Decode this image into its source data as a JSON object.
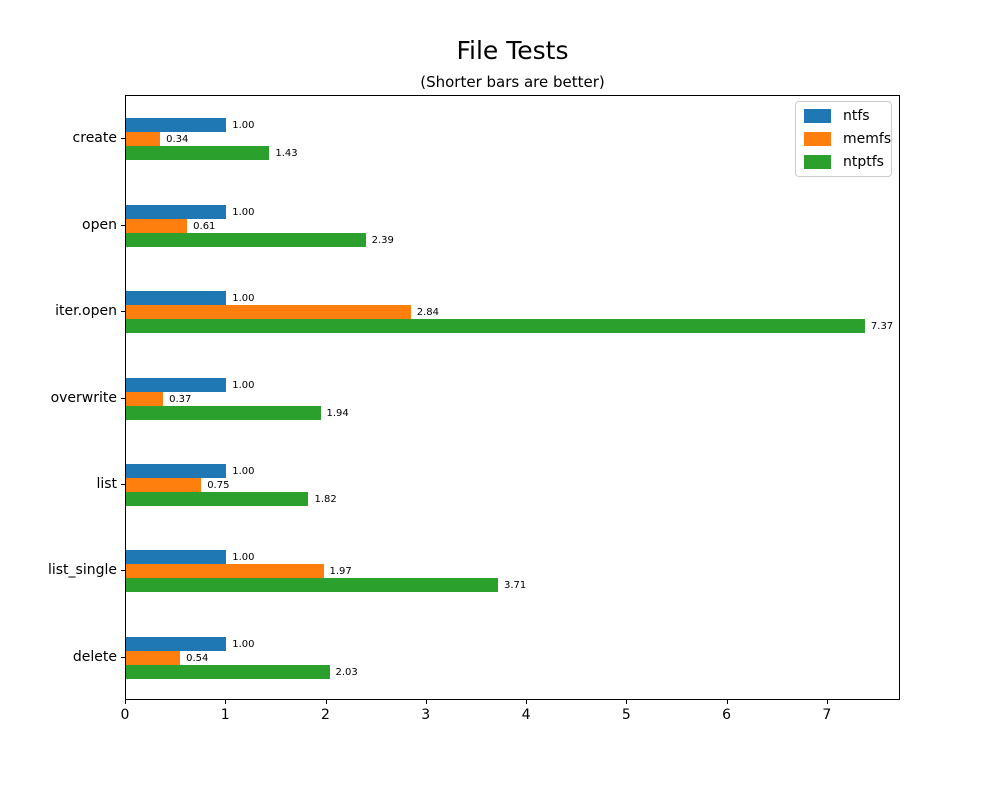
{
  "chart_data": {
    "type": "bar",
    "orientation": "horizontal",
    "title": "File Tests",
    "subtitle": "(Shorter bars are better)",
    "xlabel": "",
    "ylabel": "",
    "categories": [
      "create",
      "open",
      "iter.open",
      "overwrite",
      "list",
      "list_single",
      "delete"
    ],
    "series": [
      {
        "name": "ntfs",
        "color": "#1f77b4",
        "values": [
          1.0,
          1.0,
          1.0,
          1.0,
          1.0,
          1.0,
          1.0
        ]
      },
      {
        "name": "memfs",
        "color": "#ff7f0e",
        "values": [
          0.34,
          0.61,
          2.84,
          0.37,
          0.75,
          1.97,
          0.54
        ]
      },
      {
        "name": "ntptfs",
        "color": "#2ca02c",
        "values": [
          1.43,
          2.39,
          7.37,
          1.94,
          1.82,
          3.71,
          2.03
        ]
      }
    ],
    "bar_value_labels": true,
    "value_label_format": "0.00",
    "xlim": [
      0,
      7.73
    ],
    "xticks": [
      0,
      1,
      2,
      3,
      4,
      5,
      6,
      7
    ],
    "grid": false,
    "legend_position": "upper right",
    "legend_entries": [
      "ntfs",
      "memfs",
      "ntptfs"
    ]
  }
}
